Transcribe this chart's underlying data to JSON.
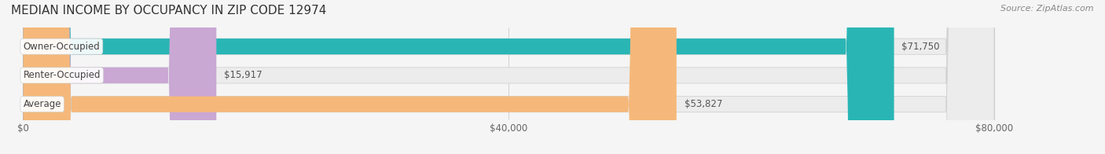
{
  "title": "MEDIAN INCOME BY OCCUPANCY IN ZIP CODE 12974",
  "source": "Source: ZipAtlas.com",
  "categories": [
    "Owner-Occupied",
    "Renter-Occupied",
    "Average"
  ],
  "values": [
    71750,
    15917,
    53827
  ],
  "labels": [
    "$71,750",
    "$15,917",
    "$53,827"
  ],
  "bar_colors": [
    "#2ab5b5",
    "#c9a8d4",
    "#f5b87a"
  ],
  "bar_bg_color": "#e8e8e8",
  "xmax": 80000,
  "xticks": [
    0,
    40000,
    80000
  ],
  "xticklabels": [
    "$0",
    "$40,000",
    "$80,000"
  ],
  "title_fontsize": 11,
  "label_fontsize": 8.5,
  "tick_fontsize": 8.5,
  "source_fontsize": 8
}
